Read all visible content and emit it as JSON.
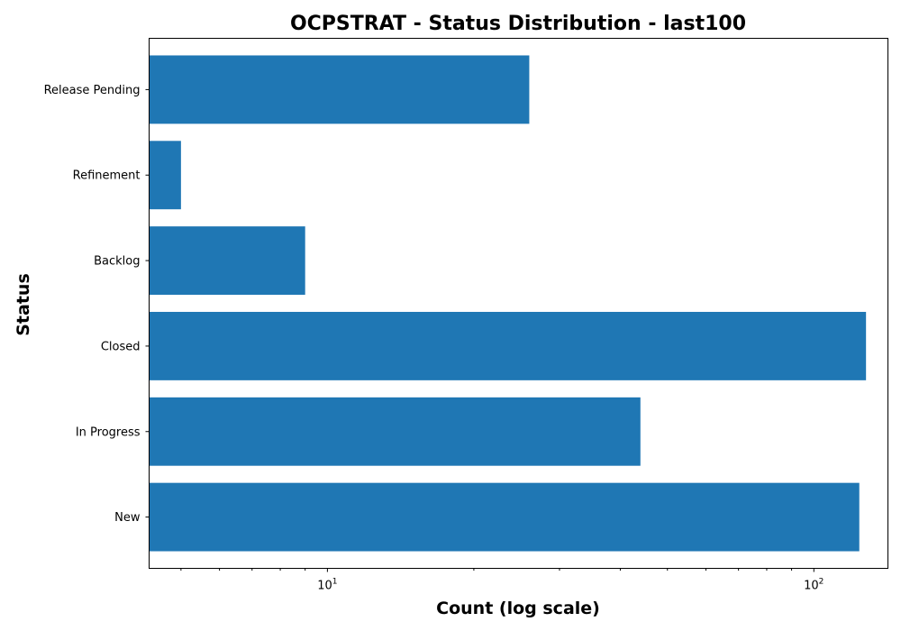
{
  "chart_data": {
    "type": "bar",
    "orientation": "horizontal",
    "title": "OCPSTRAT - Status Distribution - last100",
    "xlabel": "Count (log scale)",
    "ylabel": "Status",
    "x_scale": "log",
    "xlim": [
      4.3,
      142
    ],
    "x_ticks": [
      {
        "value": 10,
        "base": "10",
        "exp": "1"
      },
      {
        "value": 100,
        "base": "10",
        "exp": "2"
      }
    ],
    "categories": [
      "New",
      "In Progress",
      "Closed",
      "Backlog",
      "Refinement",
      "Release Pending"
    ],
    "values": [
      124,
      44,
      128,
      9,
      5,
      26
    ],
    "bar_color": "#1f77b4",
    "grid": false,
    "legend": "none"
  }
}
